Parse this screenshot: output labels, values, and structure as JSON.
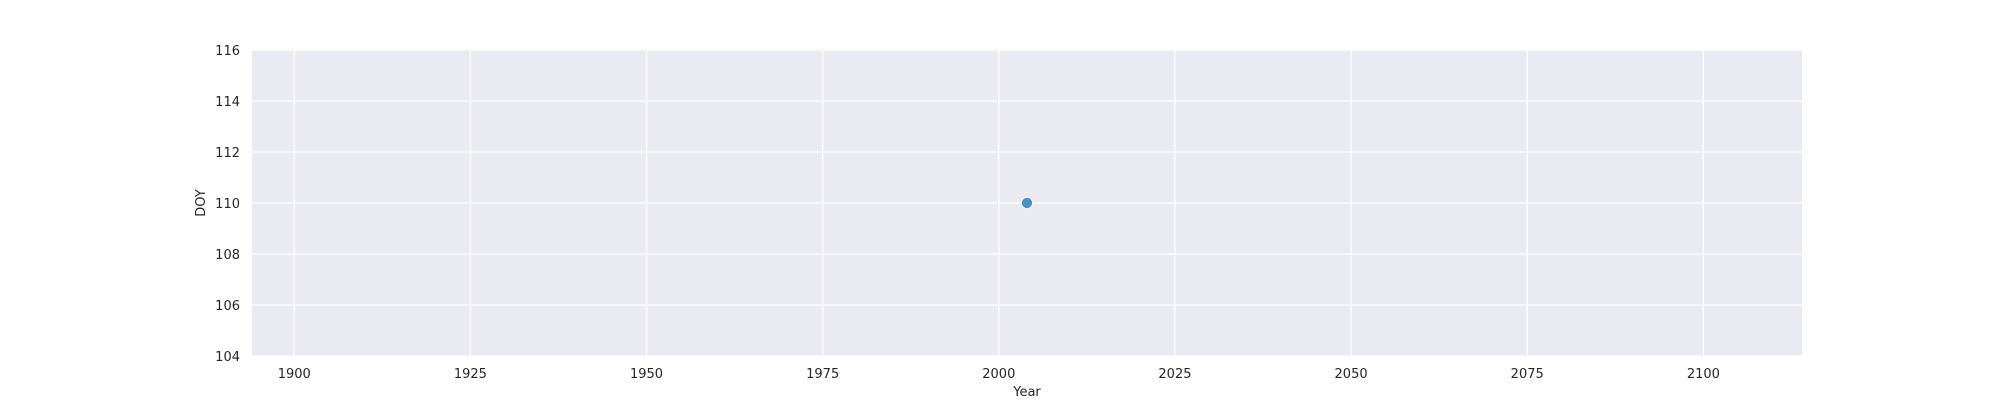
{
  "chart_data": {
    "type": "scatter",
    "title": "",
    "xlabel": "Year",
    "ylabel": "DOY",
    "xlim": [
      1894,
      2114
    ],
    "ylim": [
      104,
      116
    ],
    "xticks": [
      1900,
      1925,
      1950,
      1975,
      2000,
      2025,
      2050,
      2075,
      2100
    ],
    "yticks": [
      104,
      106,
      108,
      110,
      112,
      114,
      116
    ],
    "grid": true,
    "series": [
      {
        "name": "DOY",
        "color": "#4c8fbf",
        "points": [
          {
            "x": 2004,
            "y": 110
          }
        ]
      }
    ],
    "background_color": "#eaeaf2",
    "grid_color": "#ffffff"
  }
}
